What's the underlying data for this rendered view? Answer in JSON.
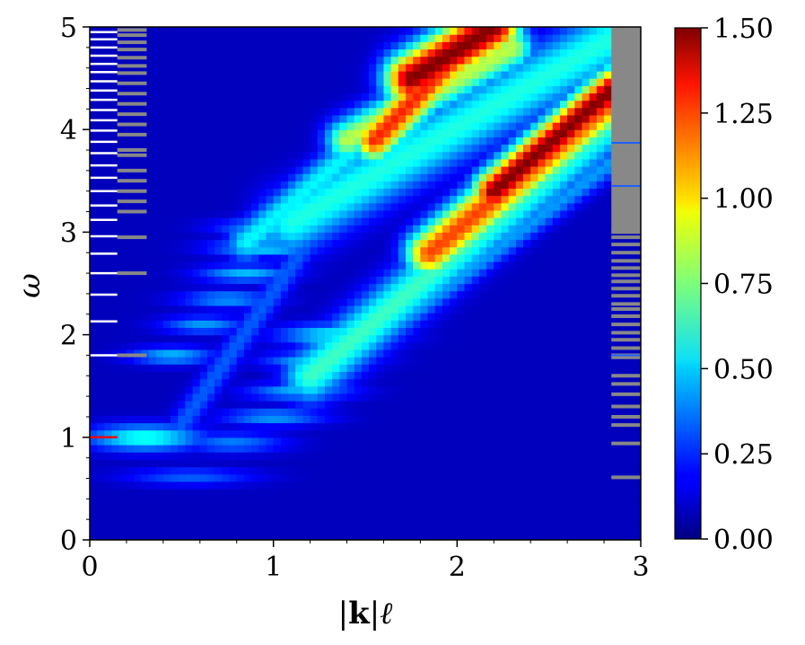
{
  "chart_data": {
    "type": "heatmap",
    "title": "",
    "xlabel": "|k|ℓ",
    "xlabel_parts": [
      "|",
      "k",
      "|",
      "ℓ"
    ],
    "ylabel": "ω",
    "xlim": [
      0,
      3
    ],
    "ylim": [
      0,
      5
    ],
    "x_ticks": [
      "0",
      "1",
      "2",
      "3"
    ],
    "y_ticks": [
      "0",
      "1",
      "2",
      "3",
      "4",
      "5"
    ],
    "colormap": "jet",
    "colorbar": {
      "min": 0.0,
      "max": 1.5,
      "ticks": [
        "0.00",
        "0.25",
        "0.50",
        "0.75",
        "1.00",
        "1.25",
        "1.50"
      ]
    },
    "features": [
      {
        "kind": "blob",
        "x": 0.3,
        "y": 1.0,
        "sx": 0.22,
        "sy": 0.09,
        "value": 0.55
      },
      {
        "kind": "blob",
        "x": 0.55,
        "y": 0.62,
        "sx": 0.25,
        "sy": 0.06,
        "value": 0.25
      },
      {
        "kind": "blob",
        "x": 0.78,
        "y": 0.95,
        "sx": 0.2,
        "sy": 0.07,
        "value": 0.3
      },
      {
        "kind": "blob",
        "x": 0.45,
        "y": 1.8,
        "sx": 0.16,
        "sy": 0.06,
        "value": 0.4
      },
      {
        "kind": "blob",
        "x": 0.62,
        "y": 2.1,
        "sx": 0.16,
        "sy": 0.06,
        "value": 0.35
      },
      {
        "kind": "blob",
        "x": 0.75,
        "y": 2.35,
        "sx": 0.18,
        "sy": 0.06,
        "value": 0.35
      },
      {
        "kind": "blob",
        "x": 0.85,
        "y": 2.6,
        "sx": 0.18,
        "sy": 0.06,
        "value": 0.4
      },
      {
        "kind": "blob",
        "x": 0.95,
        "y": 2.85,
        "sx": 0.2,
        "sy": 0.06,
        "value": 0.45
      },
      {
        "kind": "blob",
        "x": 1.0,
        "y": 3.05,
        "sx": 0.2,
        "sy": 0.06,
        "value": 0.45
      },
      {
        "kind": "blob",
        "x": 1.0,
        "y": 1.2,
        "sx": 0.2,
        "sy": 0.06,
        "value": 0.35
      },
      {
        "kind": "blob",
        "x": 1.15,
        "y": 1.45,
        "sx": 0.2,
        "sy": 0.06,
        "value": 0.4
      },
      {
        "kind": "blob",
        "x": 1.25,
        "y": 1.75,
        "sx": 0.2,
        "sy": 0.06,
        "value": 0.45
      },
      {
        "kind": "blob",
        "x": 1.35,
        "y": 2.0,
        "sx": 0.22,
        "sy": 0.08,
        "value": 0.5
      },
      {
        "kind": "ridge",
        "x0": 0.45,
        "y0": 1.0,
        "x1": 2.0,
        "y1": 5.0,
        "width": 0.05,
        "value": 0.25
      },
      {
        "kind": "ridge",
        "x0": 0.85,
        "y0": 2.9,
        "x1": 1.5,
        "y1": 3.9,
        "width": 0.07,
        "value": 0.5
      },
      {
        "kind": "ridge",
        "x0": 1.4,
        "y0": 3.9,
        "x1": 2.3,
        "y1": 4.8,
        "width": 0.08,
        "value": 0.8
      },
      {
        "kind": "ridge",
        "x0": 1.55,
        "y0": 3.9,
        "x1": 2.15,
        "y1": 5.0,
        "width": 0.08,
        "value": 1.25
      },
      {
        "kind": "ridge",
        "x0": 1.75,
        "y0": 4.5,
        "x1": 2.2,
        "y1": 5.0,
        "width": 0.1,
        "value": 1.5
      },
      {
        "kind": "ridge",
        "x0": 1.1,
        "y0": 3.1,
        "x1": 2.85,
        "y1": 4.9,
        "width": 0.12,
        "value": 0.55
      },
      {
        "kind": "ridge",
        "x0": 1.2,
        "y0": 1.6,
        "x1": 2.85,
        "y1": 4.1,
        "width": 0.1,
        "value": 0.6
      },
      {
        "kind": "ridge",
        "x0": 1.85,
        "y0": 2.8,
        "x1": 2.85,
        "y1": 4.3,
        "width": 0.09,
        "value": 1.2
      },
      {
        "kind": "ridge",
        "x0": 2.2,
        "y0": 3.4,
        "x1": 2.85,
        "y1": 4.4,
        "width": 0.08,
        "value": 1.5
      },
      {
        "kind": "ridge",
        "x0": 1.45,
        "y0": 1.8,
        "x1": 2.85,
        "y1": 3.7,
        "width": 0.05,
        "value": 0.35
      }
    ],
    "left_levels_white": [
      1.8,
      2.13,
      2.39,
      2.6,
      2.79,
      2.96,
      3.12,
      3.26,
      3.4,
      3.53,
      3.65,
      3.77,
      3.88,
      3.99,
      4.09,
      4.19,
      4.29,
      4.38,
      4.47,
      4.56,
      4.64,
      4.72,
      4.8,
      4.88,
      4.95
    ],
    "left_levels_red": [
      1.0
    ],
    "left_levels_gray": [
      1.8,
      2.6,
      2.95,
      3.2,
      3.3,
      3.4,
      3.5,
      3.6,
      3.75,
      3.8,
      3.95,
      4.05,
      4.15,
      4.25,
      4.35,
      4.45,
      4.55,
      4.62,
      4.7,
      4.78,
      4.85,
      4.92,
      4.97
    ],
    "right_levels_gray": [
      0.61,
      0.94,
      1.12,
      1.2,
      1.3,
      1.42,
      1.52,
      1.6,
      1.78,
      1.8,
      1.87,
      1.95,
      2.02,
      2.1,
      2.18,
      2.25,
      2.3,
      2.38,
      2.45,
      2.52,
      2.58,
      2.65,
      2.72,
      2.8,
      2.88,
      2.95,
      3.0
    ],
    "right_levels_blue": [
      1.8,
      3.45,
      3.87
    ]
  }
}
